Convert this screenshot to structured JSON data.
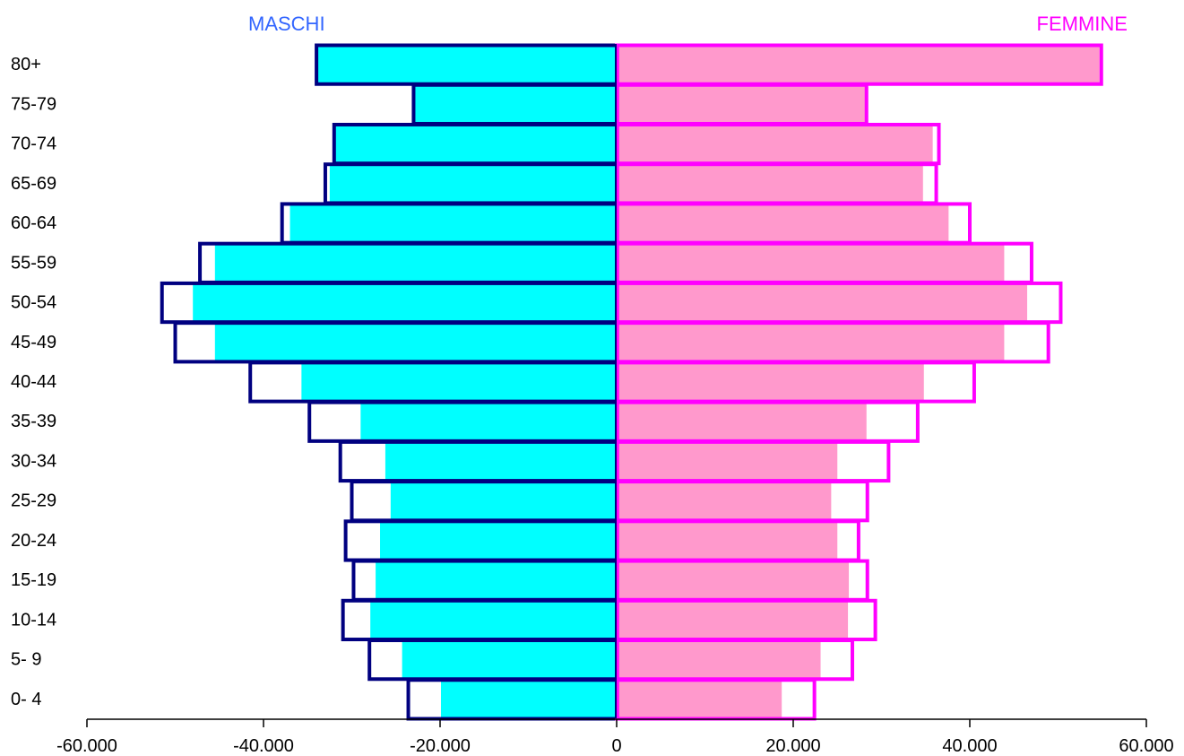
{
  "chart_data": {
    "type": "bar",
    "orientation": "horizontal",
    "subtype": "population-pyramid",
    "categories": [
      "80+",
      "75-79",
      "70-74",
      "65-69",
      "60-64",
      "55-59",
      "50-54",
      "45-49",
      "40-44",
      "35-39",
      "30-34",
      "25-29",
      "20-24",
      "15-19",
      "10-14",
      "5- 9",
      "0- 4"
    ],
    "series": [
      {
        "name": "MASCHI",
        "role": "filled",
        "values": [
          -34000,
          -23000,
          -32000,
          -32500,
          -37000,
          -45500,
          -48000,
          -45500,
          -35700,
          -29000,
          -26200,
          -25600,
          -26800,
          -27300,
          -27900,
          -24300,
          -19900
        ]
      },
      {
        "name": "",
        "role": "outline-left",
        "values": [
          -34000,
          -23000,
          -32000,
          -33000,
          -37900,
          -47200,
          -51500,
          -50000,
          -41500,
          -34800,
          -31300,
          -30000,
          -30700,
          -29800,
          -31000,
          -28000,
          -23600
        ]
      },
      {
        "name": "FEMMINE",
        "role": "filled",
        "values": [
          54700,
          28300,
          35800,
          34700,
          37600,
          43900,
          46500,
          43900,
          34800,
          28300,
          25000,
          24300,
          25000,
          26300,
          26200,
          23100,
          18700
        ]
      },
      {
        "name": "",
        "role": "outline-right",
        "values": [
          54900,
          28300,
          36500,
          36200,
          40000,
          47000,
          50300,
          48900,
          40500,
          34100,
          30800,
          28400,
          27400,
          28400,
          29300,
          26700,
          22400
        ]
      }
    ],
    "xlim": [
      -60000,
      60000
    ],
    "xticks": [
      -60000,
      -40000,
      -20000,
      0,
      20000,
      40000,
      60000
    ],
    "xtick_labels": [
      "-60.000",
      "-40.000",
      "-20.000",
      "0",
      "20.000",
      "40.000",
      "60.000"
    ],
    "legend_labels": {
      "left": "MASCHI",
      "right": "FEMMINE"
    },
    "grid": false,
    "colors": {
      "male_fill": "#00ffff",
      "male_outline": "#000080",
      "female_fill": "#ff99cc",
      "female_outline": "#ff00ff",
      "male_title": "#3366ff",
      "female_title": "#ff00ff",
      "axis": "#000000"
    }
  }
}
